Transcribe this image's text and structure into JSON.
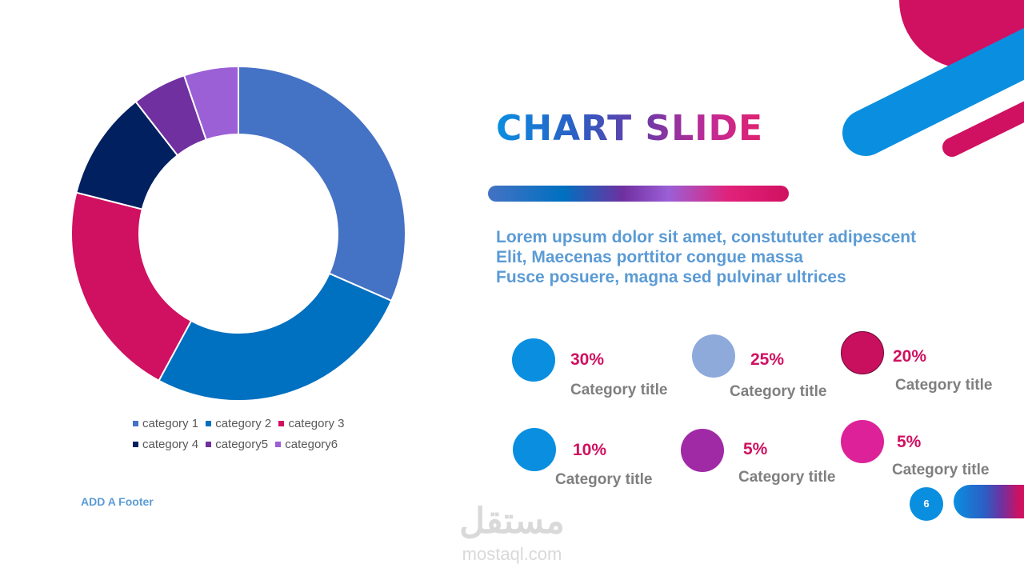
{
  "slide": {
    "title": "CHART SLIDE",
    "body_lines": [
      "Lorem upsum dolor sit amet, constututer adipescent",
      "Elit, Maecenas porttitor congue massa",
      "Fusce posuere, magna sed pulvinar ultrices"
    ],
    "footer": "ADD A Footer",
    "page_number": "6",
    "watermark": {
      "arabic": "مستقل",
      "latin": "mostaql.com"
    }
  },
  "stats": [
    {
      "percent": "30%",
      "label": "Category title",
      "color": "#0a8fe0"
    },
    {
      "percent": "25%",
      "label": "Category title",
      "color": "#8eaadb"
    },
    {
      "percent": "20%",
      "label": "Category title",
      "color": "#c8105e"
    },
    {
      "percent": "10%",
      "label": "Category title",
      "color": "#0a8fe0"
    },
    {
      "percent": "5%",
      "label": "Category title",
      "color": "#a02aa6"
    },
    {
      "percent": "5%",
      "label": "Category title",
      "color": "#dd2299"
    }
  ],
  "chart_data": {
    "type": "pie",
    "donut": true,
    "categories": [
      "category 1",
      "category 2",
      "category 3",
      "category 4",
      "category5",
      "category6"
    ],
    "values": [
      30,
      25,
      20,
      10,
      5,
      5
    ],
    "colors": [
      "#4472c4",
      "#0070c0",
      "#d01060",
      "#002060",
      "#7030a0",
      "#9b5fd6"
    ],
    "legend_position": "bottom",
    "title": ""
  }
}
